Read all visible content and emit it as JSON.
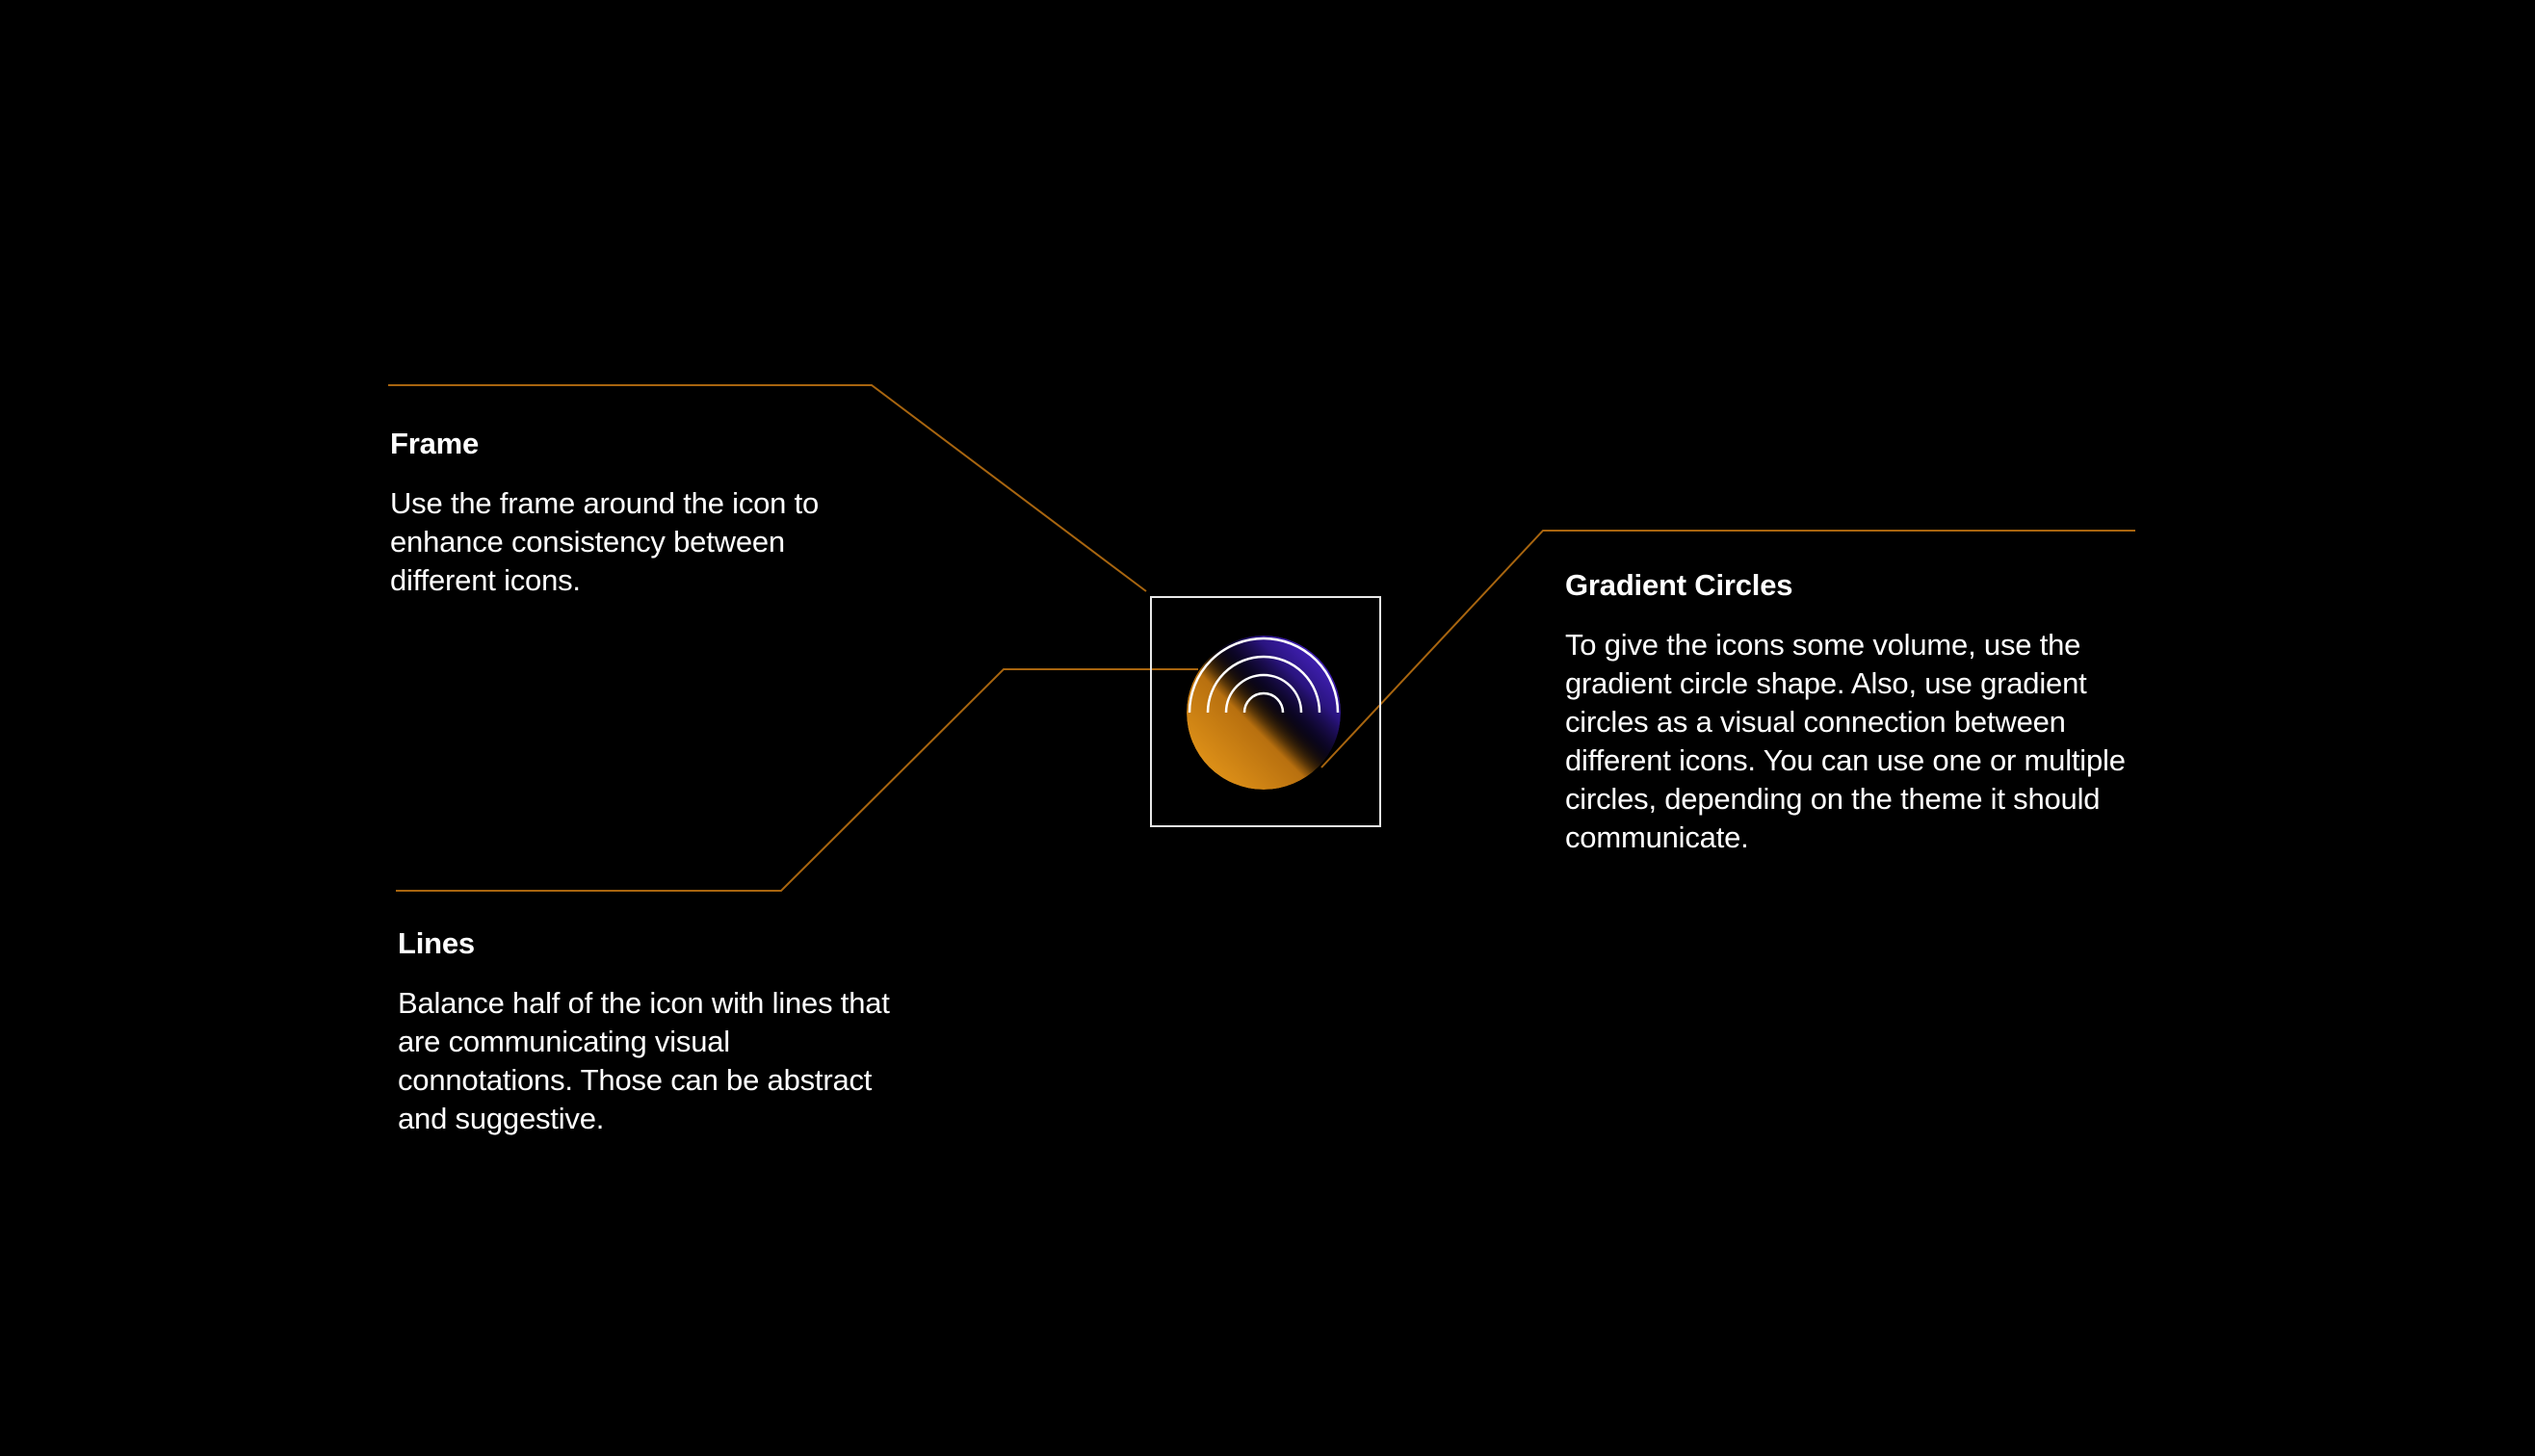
{
  "colors": {
    "background": "#000000",
    "leader_line": "#a8650f",
    "frame_stroke": "#e8e8e8",
    "text": "#ffffff",
    "gradient_orange": "#f0a01c",
    "gradient_purple": "#5a2df0"
  },
  "icon": {
    "name": "signal-arcs-icon",
    "description_parts": [
      "frame",
      "gradient-circle",
      "concentric-arcs"
    ]
  },
  "callouts": {
    "frame": {
      "title": "Frame",
      "body": "Use the frame around the icon to enhance consistency between different icons."
    },
    "lines": {
      "title": "Lines",
      "body": "Balance half of the icon with lines that are communicating visual connotations. Those can be abstract and suggestive."
    },
    "gradient_circles": {
      "title": "Gradient Circles",
      "body": "To give the icons some volume, use the gradient circle shape. Also, use gradient circles as a visual connection between different icons. You can use one or multiple circles, depending on the theme it should communicate."
    }
  }
}
